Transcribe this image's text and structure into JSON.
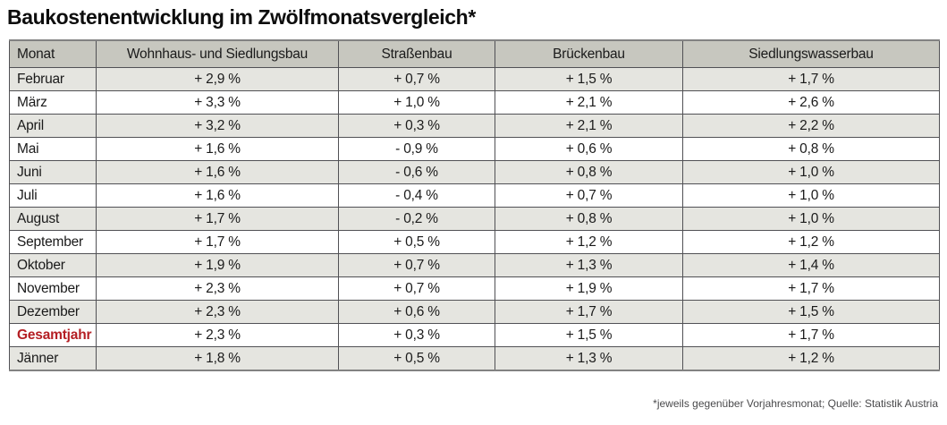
{
  "chart_data": {
    "type": "table",
    "title": "Baukostenentwicklung im Zwölfmonatsvergleich*",
    "columns": [
      "Monat",
      "Wohnhaus- und Siedlungsbau",
      "Straßenbau",
      "Brückenbau",
      "Siedlungswasserbau"
    ],
    "rows": [
      {
        "month": "Februar",
        "values": [
          "+ 2,9 %",
          "+ 0,7 %",
          "+ 1,5 %",
          "+ 1,7 %"
        ],
        "highlight": false
      },
      {
        "month": "März",
        "values": [
          "+ 3,3 %",
          "+ 1,0 %",
          "+ 2,1 %",
          "+ 2,6 %"
        ],
        "highlight": false
      },
      {
        "month": "April",
        "values": [
          "+ 3,2 %",
          "+ 0,3 %",
          "+ 2,1 %",
          "+ 2,2 %"
        ],
        "highlight": false
      },
      {
        "month": "Mai",
        "values": [
          "+ 1,6 %",
          "- 0,9 %",
          "+ 0,6 %",
          "+ 0,8 %"
        ],
        "highlight": false
      },
      {
        "month": "Juni",
        "values": [
          "+ 1,6 %",
          "- 0,6 %",
          "+ 0,8 %",
          "+ 1,0 %"
        ],
        "highlight": false
      },
      {
        "month": "Juli",
        "values": [
          "+ 1,6 %",
          "- 0,4 %",
          "+ 0,7 %",
          "+ 1,0 %"
        ],
        "highlight": false
      },
      {
        "month": "August",
        "values": [
          "+ 1,7 %",
          "- 0,2 %",
          "+ 0,8 %",
          "+ 1,0 %"
        ],
        "highlight": false
      },
      {
        "month": "September",
        "values": [
          "+ 1,7 %",
          "+ 0,5 %",
          "+ 1,2 %",
          "+ 1,2 %"
        ],
        "highlight": false
      },
      {
        "month": "Oktober",
        "values": [
          "+ 1,9 %",
          "+ 0,7 %",
          "+ 1,3 %",
          "+ 1,4 %"
        ],
        "highlight": false
      },
      {
        "month": "November",
        "values": [
          "+ 2,3 %",
          "+ 0,7 %",
          "+ 1,9 %",
          "+ 1,7 %"
        ],
        "highlight": false
      },
      {
        "month": "Dezember",
        "values": [
          "+ 2,3 %",
          "+ 0,6 %",
          "+ 1,7 %",
          "+ 1,5 %"
        ],
        "highlight": false
      },
      {
        "month": "Gesamtjahr",
        "values": [
          "+ 2,3 %",
          "+ 0,3 %",
          "+ 1,5 %",
          "+ 1,7 %"
        ],
        "highlight": true
      },
      {
        "month": "Jänner",
        "values": [
          "+ 1,8 %",
          "+ 0,5 %",
          "+ 1,3 %",
          "+ 1,2 %"
        ],
        "highlight": false
      }
    ],
    "layout": {
      "grid": true,
      "header_align": "center",
      "month_align": "left",
      "value_align": "center"
    }
  },
  "footnote": "*jeweils gegenüber Vorjahresmonat; Quelle: Statistik Austria",
  "colors": {
    "header_bg": "#c7c7bf",
    "row_alt_bg": "#e5e5e0",
    "row_bg": "#ffffff",
    "border": "#515155",
    "outer_border": "#828282",
    "text": "#1a1a1a",
    "highlight_text": "#b41e23",
    "footnote_text": "#4a4a4c"
  }
}
